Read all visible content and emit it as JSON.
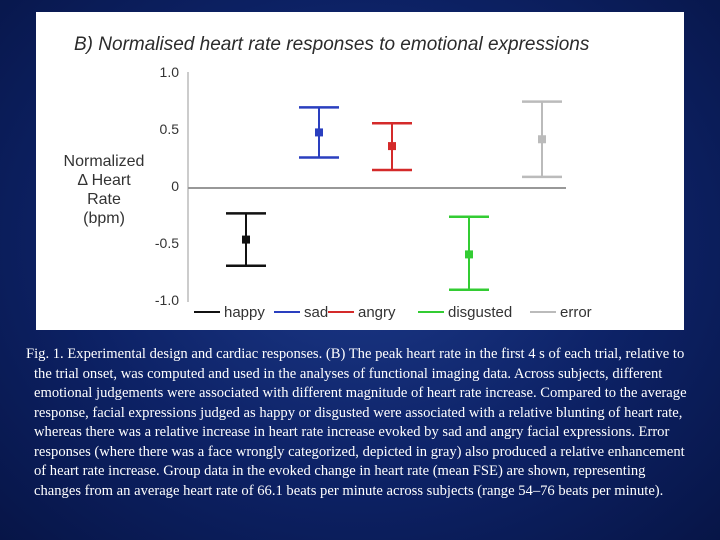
{
  "chart_data": {
    "type": "errorbar",
    "title": "B) Normalised heart rate responses to emotional expressions",
    "ylabel_lines": [
      "Normalized",
      "Δ Heart",
      "Rate",
      "(bpm)"
    ],
    "y_ticks": [
      "1.0",
      "0.5",
      "0",
      "-0.5",
      "-1.0"
    ],
    "y_tick_values": [
      1.0,
      0.5,
      0,
      -0.5,
      -1.0
    ],
    "ylim": [
      -1.0,
      1.0
    ],
    "categories": [
      "happy",
      "sad",
      "angry",
      "disgusted",
      "error"
    ],
    "series": [
      {
        "name": "happy",
        "color": "#111111",
        "mean": -0.47,
        "lower": -0.7,
        "upper": -0.24
      },
      {
        "name": "sad",
        "color": "#2a3fbf",
        "mean": 0.47,
        "lower": 0.25,
        "upper": 0.69
      },
      {
        "name": "angry",
        "color": "#d42a2a",
        "mean": 0.35,
        "lower": 0.14,
        "upper": 0.55
      },
      {
        "name": "disgusted",
        "color": "#33cc33",
        "mean": -0.6,
        "lower": -0.91,
        "upper": -0.27
      },
      {
        "name": "error",
        "color": "#bbbbbb",
        "mean": 0.41,
        "lower": 0.08,
        "upper": 0.74
      }
    ],
    "grid": false,
    "legend_placement": "bottom"
  },
  "caption": {
    "text": "Fig. 1. Experimental design and cardiac responses.  (B) The peak heart rate in the first 4 s of each trial, relative to the trial onset, was computed and used in the analyses of functional imaging data. Across subjects, different emotional judgements were associated with different magnitude of heart rate increase. Compared to the average response, facial expressions judged as happy or disgusted were associated with a relative blunting of heart rate, whereas there was a relative increase in heart rate increase evoked by sad and angry facial expressions. Error responses (where there was a face wrongly categorized, depicted in gray) also produced a relative enhancement of heart rate increase. Group data in the evoked change in heart rate (mean FSE) are shown, representing changes from an average heart rate of 66.1 beats per minute across subjects (range 54–76 beats per minute)."
  }
}
